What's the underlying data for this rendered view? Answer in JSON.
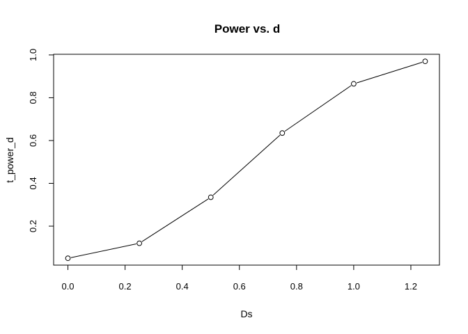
{
  "chart_data": {
    "type": "line",
    "title": "Power vs. d",
    "xlabel": "Ds",
    "ylabel": "t_power_d",
    "x": [
      0.0,
      0.25,
      0.5,
      0.75,
      1.0,
      1.25
    ],
    "series": [
      {
        "values": [
          0.05,
          0.12,
          0.335,
          0.635,
          0.865,
          0.97
        ]
      }
    ],
    "xlim": [
      -0.05,
      1.3
    ],
    "ylim": [
      0.018,
      1.003
    ],
    "xticks": [
      0.0,
      0.2,
      0.4,
      0.6,
      0.8,
      1.0,
      1.2
    ],
    "xtick_labels": [
      "0.0",
      "0.2",
      "0.4",
      "0.6",
      "0.8",
      "1.0",
      "1.2"
    ],
    "yticks": [
      0.2,
      0.4,
      0.6,
      0.8,
      1.0
    ],
    "ytick_labels": [
      "0.2",
      "0.4",
      "0.6",
      "0.8",
      "1.0"
    ],
    "grid": false,
    "markers": "open-circle",
    "line_color": "#000000",
    "marker_color": "#000000"
  }
}
